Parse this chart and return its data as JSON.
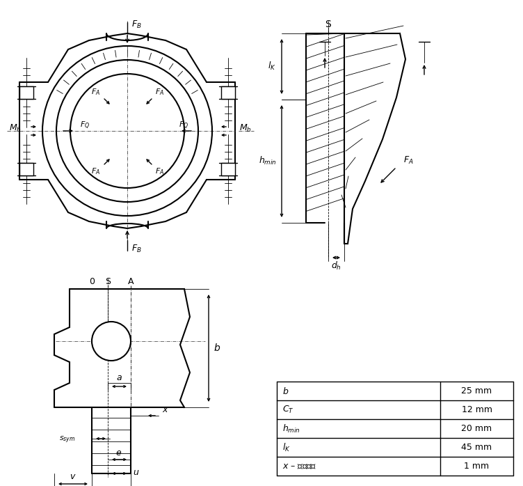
{
  "bg_color": "#ffffff",
  "line_color": "#000000",
  "table_rows": [
    [
      "b",
      "25 mm"
    ],
    [
      "C_T",
      "12 mm"
    ],
    [
      "h_min",
      "20 mm"
    ],
    [
      "l_K",
      "45 mm"
    ],
    [
      "x_wall",
      "1 mm"
    ]
  ]
}
